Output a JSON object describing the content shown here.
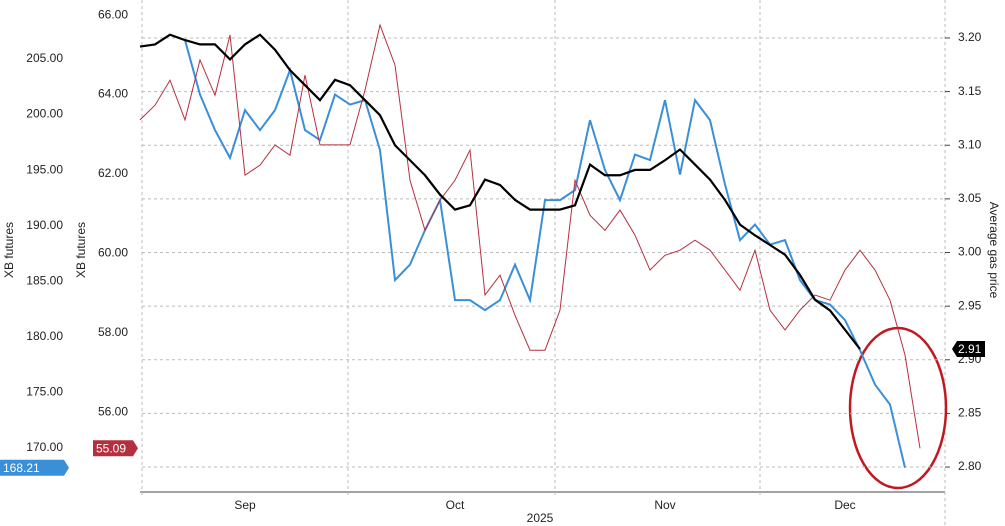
{
  "chart_data": {
    "type": "line",
    "categories": [
      null,
      null,
      null,
      null,
      null,
      null,
      null,
      "Sep",
      null,
      null,
      null,
      null,
      null,
      null,
      null,
      null,
      null,
      null,
      null,
      null,
      null,
      "Oct",
      null,
      null,
      null,
      null,
      null,
      null,
      null,
      null,
      null,
      null,
      null,
      null,
      null,
      "Nov",
      null,
      null,
      null,
      null,
      null,
      null,
      null,
      null,
      null,
      null,
      null,
      "Dec",
      null,
      null,
      null,
      null,
      null
    ],
    "x_label": "2025",
    "ylabel": "XB futures",
    "y3label": "XB futures",
    "y2label": "Average gas price",
    "ylim": [
      166.21,
      210.31
    ],
    "yticks": [
      {
        "value": 170,
        "label": "170.00"
      },
      {
        "value": 175,
        "label": "175.00"
      },
      {
        "value": 180,
        "label": "180.00"
      },
      {
        "value": 185,
        "label": "185.00"
      },
      {
        "value": 190,
        "label": "190.00"
      },
      {
        "value": 195,
        "label": "195.00"
      },
      {
        "value": 200,
        "label": "200.00"
      },
      {
        "value": 205,
        "label": "205.00"
      }
    ],
    "y3lim": [
      54.04,
      66.38
    ],
    "y3ticks": [
      {
        "value": 56,
        "label": "56.00"
      },
      {
        "value": 58,
        "label": "58.00"
      },
      {
        "value": 60,
        "label": "60.00"
      },
      {
        "value": 62,
        "label": "62.00"
      },
      {
        "value": 64,
        "label": "64.00"
      },
      {
        "value": 66,
        "label": "66.00"
      }
    ],
    "y2lim": [
      2.7786,
      3.2354
    ],
    "y2ticks": [
      {
        "value": 2.8,
        "label": "2.80"
      },
      {
        "value": 2.85,
        "label": "2.85"
      },
      {
        "value": 2.9,
        "label": "2.90"
      },
      {
        "value": 2.95,
        "label": "2.95"
      },
      {
        "value": 3.0,
        "label": "3.00"
      },
      {
        "value": 3.05,
        "label": "3.05"
      },
      {
        "value": 3.1,
        "label": "3.10"
      },
      {
        "value": 3.15,
        "label": "3.15"
      },
      {
        "value": 3.2,
        "label": "3.20"
      }
    ],
    "grid": true,
    "series": [
      {
        "color": "#3a8fd9",
        "axis": "y",
        "values": [
          null,
          null,
          null,
          206.7,
          201.8,
          198.6,
          196.1,
          200.4,
          198.6,
          200.4,
          204.0,
          198.6,
          197.7,
          201.8,
          200.9,
          201.3,
          196.8,
          185.1,
          186.5,
          189.6,
          192.3,
          183.3,
          183.3,
          182.4,
          183.3,
          186.5,
          183.3,
          192.3,
          192.3,
          193.2,
          199.5,
          195.0,
          192.3,
          196.4,
          195.9,
          201.3,
          194.6,
          201.3,
          199.5,
          193.7,
          188.7,
          190.1,
          188.3,
          188.7,
          185.1,
          183.3,
          182.9,
          181.5,
          178.8,
          175.7,
          173.9,
          168.21,
          null
        ]
      },
      {
        "color": "#b5303f",
        "axis": "y3",
        "values": [
          63.36,
          63.73,
          64.36,
          63.36,
          64.87,
          63.98,
          65.5,
          61.97,
          62.22,
          62.73,
          62.47,
          64.49,
          62.73,
          62.73,
          62.73,
          64.11,
          65.75,
          64.74,
          61.84,
          60.58,
          61.34,
          61.84,
          62.6,
          58.95,
          59.45,
          58.44,
          57.56,
          57.56,
          58.57,
          61.84,
          60.96,
          60.58,
          61.09,
          60.46,
          59.58,
          59.95,
          60.08,
          60.33,
          60.08,
          59.58,
          59.07,
          60.08,
          58.57,
          58.07,
          58.57,
          58.95,
          58.82,
          59.58,
          60.08,
          59.58,
          58.82,
          57.44,
          55.09
        ]
      },
      {
        "color": "#000000",
        "axis": "y2",
        "values": [
          3.192,
          3.194,
          3.203,
          3.198,
          3.194,
          3.194,
          3.18,
          3.194,
          3.203,
          3.189,
          3.17,
          3.156,
          3.142,
          3.161,
          3.156,
          3.142,
          3.128,
          3.1,
          3.086,
          3.072,
          3.054,
          3.04,
          3.044,
          3.068,
          3.063,
          3.049,
          3.04,
          3.04,
          3.04,
          3.044,
          3.082,
          3.072,
          3.072,
          3.077,
          3.077,
          3.086,
          3.096,
          3.082,
          3.068,
          3.049,
          3.026,
          3.016,
          3.007,
          2.998,
          2.979,
          2.956,
          2.946,
          2.928,
          2.91,
          null,
          null,
          null,
          null
        ]
      }
    ]
  }
}
